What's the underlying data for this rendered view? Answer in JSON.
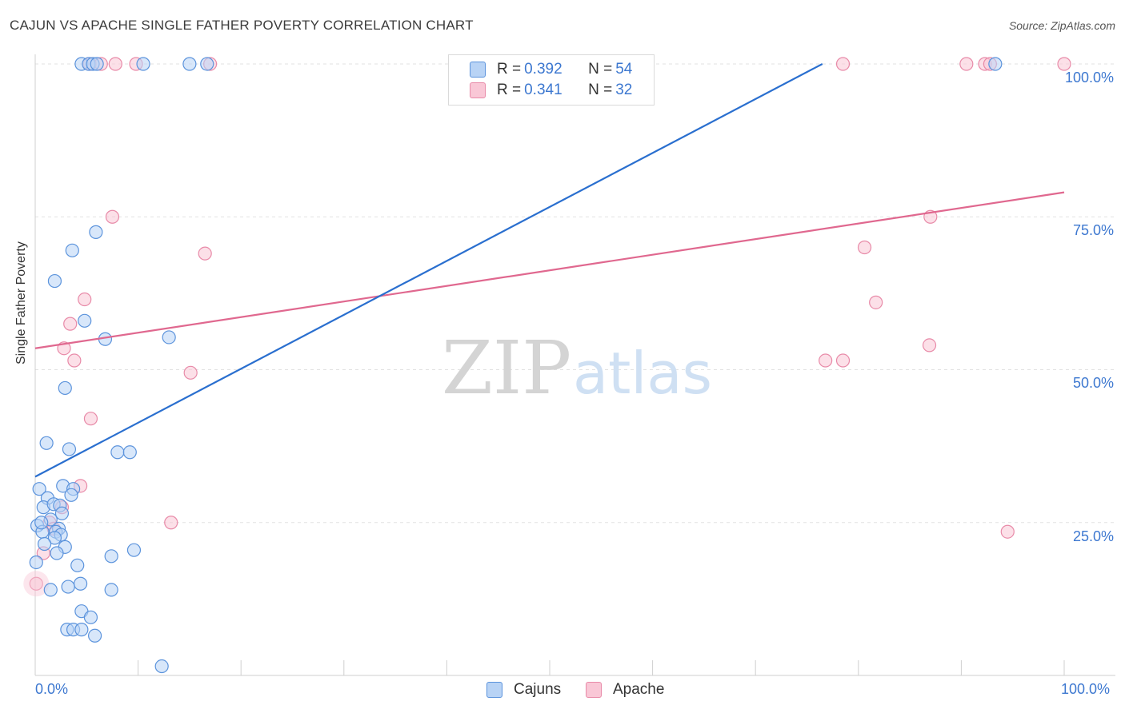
{
  "title": "CAJUN VS APACHE SINGLE FATHER POVERTY CORRELATION CHART",
  "source": "Source: ZipAtlas.com",
  "watermark": {
    "zip": "ZIP",
    "atlas": "atlas"
  },
  "colors": {
    "cajuns_fill": "#b8d3f5",
    "cajuns_stroke": "#5b93dc",
    "cajuns_line": "#2a6fcf",
    "apache_fill": "#f9c7d6",
    "apache_stroke": "#e88aa8",
    "apache_line": "#e0688f",
    "tick_text": "#3d78d0",
    "grid": "#e2e2e2"
  },
  "legend": {
    "rows": [
      {
        "r_label": "R = ",
        "r_value": "0.392",
        "n_label": "N = ",
        "n_value": "54"
      },
      {
        "r_label": "R = ",
        "r_value": "0.341",
        "n_label": "N = ",
        "n_value": "32"
      }
    ]
  },
  "bottom_legend": {
    "cajuns": "Cajuns",
    "apache": "Apache"
  },
  "chart_data": {
    "type": "scatter",
    "title": "CAJUN VS APACHE SINGLE FATHER POVERTY CORRELATION CHART",
    "xlabel": "",
    "ylabel": "Single Father Poverty",
    "xlim": [
      0,
      100
    ],
    "ylim": [
      0,
      100
    ],
    "x_tick_labels": [
      "0.0%",
      "100.0%"
    ],
    "y_tick_labels": [
      "100.0%",
      "75.0%",
      "50.0%",
      "25.0%"
    ],
    "y_ticks": [
      100,
      75,
      50,
      25
    ],
    "grid": true,
    "legend_position": "top-center",
    "series": [
      {
        "name": "Cajuns",
        "r": 0.392,
        "n": 54,
        "trend": {
          "x0": 0,
          "y0": 32.5,
          "x1": 76.5,
          "y1": 100
        },
        "points": [
          [
            4.5,
            100
          ],
          [
            5.2,
            100
          ],
          [
            5.6,
            100
          ],
          [
            6.0,
            100
          ],
          [
            10.5,
            100
          ],
          [
            15.0,
            100
          ],
          [
            16.7,
            100
          ],
          [
            93.3,
            100
          ],
          [
            5.9,
            72.5
          ],
          [
            3.6,
            69.5
          ],
          [
            1.9,
            64.5
          ],
          [
            4.8,
            58
          ],
          [
            6.8,
            55
          ],
          [
            13.0,
            55.3
          ],
          [
            2.9,
            47
          ],
          [
            1.1,
            38
          ],
          [
            3.3,
            37
          ],
          [
            8.0,
            36.5
          ],
          [
            9.2,
            36.5
          ],
          [
            0.4,
            30.5
          ],
          [
            2.7,
            31
          ],
          [
            3.7,
            30.5
          ],
          [
            1.2,
            29
          ],
          [
            3.5,
            29.5
          ],
          [
            0.8,
            27.5
          ],
          [
            1.8,
            28
          ],
          [
            2.4,
            27.8
          ],
          [
            1.5,
            25.5
          ],
          [
            0.2,
            24.5
          ],
          [
            2.3,
            24
          ],
          [
            0.7,
            23.5
          ],
          [
            2.0,
            23.5
          ],
          [
            2.5,
            23
          ],
          [
            1.9,
            22.5
          ],
          [
            0.9,
            21.5
          ],
          [
            2.9,
            21
          ],
          [
            2.1,
            20
          ],
          [
            7.4,
            19.5
          ],
          [
            9.6,
            20.5
          ],
          [
            4.1,
            18
          ],
          [
            0.1,
            18.5
          ],
          [
            4.4,
            15
          ],
          [
            3.2,
            14.5
          ],
          [
            1.5,
            14
          ],
          [
            7.4,
            14
          ],
          [
            4.5,
            10.5
          ],
          [
            5.4,
            9.5
          ],
          [
            3.1,
            7.5
          ],
          [
            3.7,
            7.5
          ],
          [
            4.5,
            7.5
          ],
          [
            5.8,
            6.5
          ],
          [
            12.3,
            1.5
          ],
          [
            0.6,
            25
          ],
          [
            2.6,
            26.5
          ]
        ]
      },
      {
        "name": "Apache",
        "r": 0.341,
        "n": 32,
        "trend": {
          "x0": 0,
          "y0": 53.5,
          "x1": 100,
          "y1": 79
        },
        "points": [
          [
            5.3,
            100
          ],
          [
            6.4,
            100
          ],
          [
            7.8,
            100
          ],
          [
            9.8,
            100
          ],
          [
            17.0,
            100
          ],
          [
            78.5,
            100
          ],
          [
            90.5,
            100
          ],
          [
            92.3,
            100
          ],
          [
            92.8,
            100
          ],
          [
            100,
            100
          ],
          [
            7.5,
            75
          ],
          [
            87.0,
            75
          ],
          [
            16.5,
            69
          ],
          [
            80.6,
            70
          ],
          [
            4.8,
            61.5
          ],
          [
            81.7,
            61
          ],
          [
            3.4,
            57.5
          ],
          [
            2.8,
            53.5
          ],
          [
            3.8,
            51.5
          ],
          [
            76.8,
            51.5
          ],
          [
            78.5,
            51.5
          ],
          [
            86.9,
            54
          ],
          [
            15.1,
            49.5
          ],
          [
            5.4,
            42
          ],
          [
            4.4,
            31
          ],
          [
            2.6,
            27.5
          ],
          [
            1.4,
            25
          ],
          [
            1.8,
            24
          ],
          [
            13.2,
            25
          ],
          [
            94.5,
            23.5
          ],
          [
            0.8,
            20
          ],
          [
            0.1,
            15
          ]
        ]
      }
    ]
  }
}
